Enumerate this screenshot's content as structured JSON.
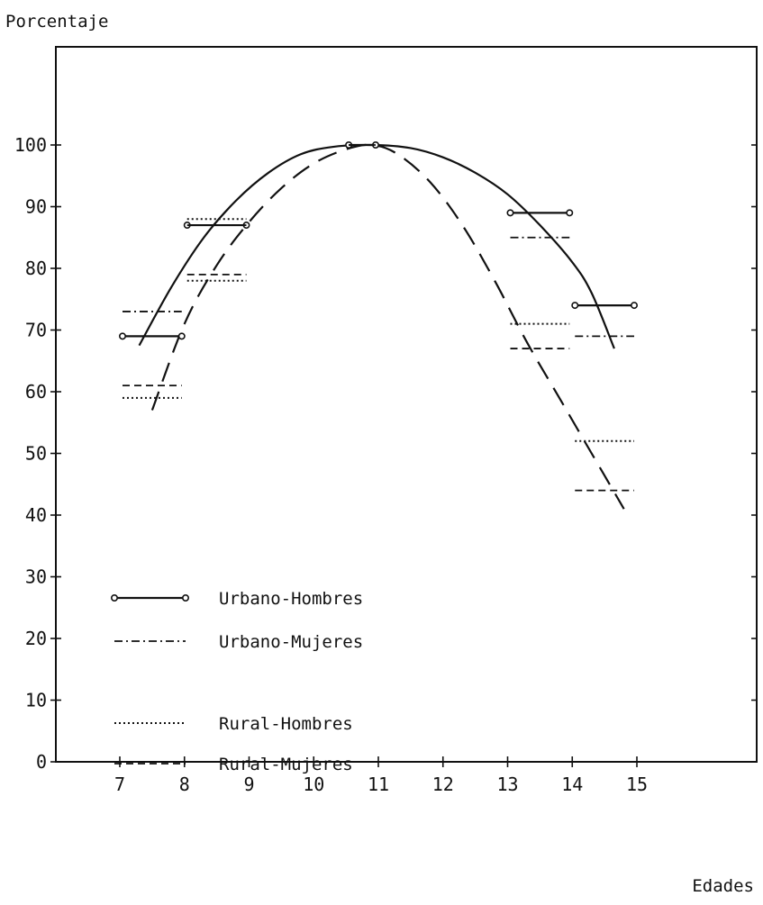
{
  "chart_data": {
    "type": "line",
    "ylabel": "Porcentaje",
    "xlabel": "Edades",
    "xlim": [
      6.1,
      16.5
    ],
    "ylim": [
      0,
      110
    ],
    "x_ticks": [
      7,
      8,
      9,
      10,
      11,
      12,
      13,
      14,
      15
    ],
    "x_tick_labels": [
      "7",
      "8",
      "9",
      "10",
      "11",
      "12",
      "13",
      "14",
      "15"
    ],
    "y_ticks": [
      0,
      10,
      20,
      30,
      40,
      50,
      60,
      70,
      80,
      90,
      100
    ],
    "y_tick_labels": [
      "0",
      "10",
      "20",
      "30",
      "40",
      "50",
      "60",
      "70",
      "80",
      "90",
      "100"
    ],
    "grid": false,
    "legend_position": "lower-left",
    "series": [
      {
        "name": "Urbano-Hombres",
        "style": "solid-markers",
        "segments": [
          {
            "x": [
              7,
              8
            ],
            "y": 69
          },
          {
            "x": [
              8,
              9
            ],
            "y": 87
          },
          {
            "x": [
              10.5,
              11
            ],
            "y": 100
          },
          {
            "x": [
              13,
              14
            ],
            "y": 89
          },
          {
            "x": [
              14,
              15
            ],
            "y": 74
          }
        ]
      },
      {
        "name": "Urbano-Mujeres",
        "style": "dash-dot",
        "segments": [
          {
            "x": [
              7,
              8
            ],
            "y": 73
          },
          {
            "x": [
              8,
              9
            ],
            "y": 87
          },
          {
            "x": [
              10.5,
              11
            ],
            "y": 100
          },
          {
            "x": [
              13,
              14
            ],
            "y": 85
          },
          {
            "x": [
              14,
              15
            ],
            "y": 69
          }
        ]
      },
      {
        "name": "Rural-Hombres",
        "style": "dotted",
        "segments": [
          {
            "x": [
              7,
              8
            ],
            "y": 59
          },
          {
            "x": [
              8,
              9
            ],
            "y": 88
          },
          {
            "x": [
              8,
              9
            ],
            "y": 78
          },
          {
            "x": [
              10.5,
              11
            ],
            "y": 100
          },
          {
            "x": [
              13,
              14
            ],
            "y": 71
          },
          {
            "x": [
              14,
              15
            ],
            "y": 52
          }
        ]
      },
      {
        "name": "Rural-Mujeres",
        "style": "dashed",
        "segments": [
          {
            "x": [
              7,
              8
            ],
            "y": 61
          },
          {
            "x": [
              8,
              9
            ],
            "y": 79
          },
          {
            "x": [
              10.5,
              11
            ],
            "y": 100
          },
          {
            "x": [
              13,
              14
            ],
            "y": 67
          },
          {
            "x": [
              14,
              15
            ],
            "y": 44
          }
        ]
      }
    ],
    "fitted_curves": [
      {
        "series": "Urbano",
        "style": "solid",
        "x": [
          7.3,
          7.8,
          8.3,
          8.8,
          9.3,
          9.8,
          10.3,
          10.9,
          11.5,
          12,
          12.5,
          13,
          13.5,
          14,
          14.3,
          14.65
        ],
        "y": [
          67.5,
          77,
          85,
          91,
          95.5,
          98.5,
          99.7,
          100,
          99.5,
          98,
          95.5,
          92,
          87,
          81,
          76,
          67
        ]
      },
      {
        "series": "Rural",
        "style": "long-dash",
        "x": [
          7.5,
          8,
          8.5,
          9,
          9.5,
          10,
          10.5,
          10.9,
          11.3,
          11.8,
          12.3,
          12.8,
          13.3,
          13.8,
          14.3,
          14.8
        ],
        "y": [
          57,
          71,
          80.5,
          87.5,
          93,
          97,
          99.3,
          100,
          98.5,
          94,
          87,
          78,
          68,
          59,
          50,
          41
        ]
      }
    ]
  }
}
